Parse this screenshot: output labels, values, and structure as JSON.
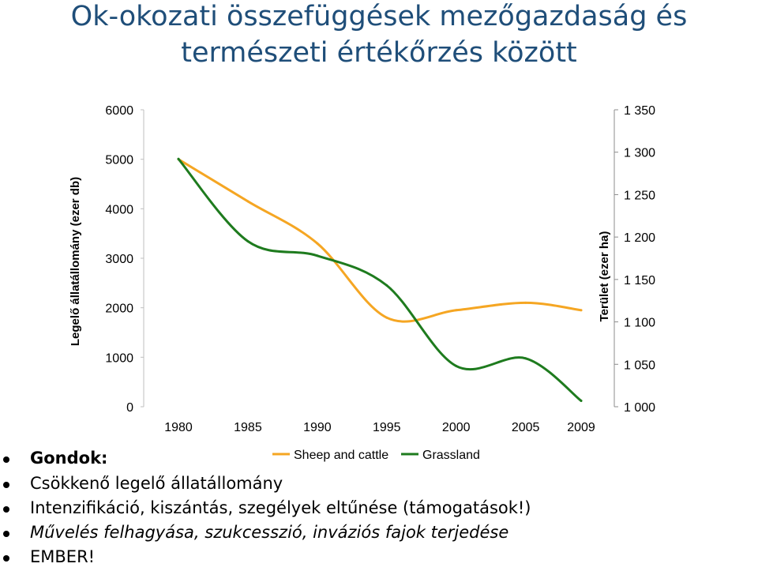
{
  "slide": {
    "title_line1": "Ok-okozati összefüggések mezőgazdaság és",
    "title_line2": "természeti értékőrzés között",
    "bullets": [
      {
        "text": "Gondok:",
        "bold": true
      },
      {
        "text": "Csökkenő legelő állatállomány"
      },
      {
        "text": "Intenzifikáció, kiszántás, szegélyek eltűnése (támogatások!)"
      },
      {
        "text": "Művelés felhagyása, szukcesszió, inváziós fajok terjedése",
        "italic": true
      },
      {
        "text": "EMBER!"
      }
    ]
  },
  "chart_data": {
    "type": "line",
    "title": "",
    "x": [
      1980,
      1985,
      1990,
      1995,
      2000,
      2005,
      2009
    ],
    "x_tick_labels": [
      "1980",
      "1985",
      "1990",
      "1995",
      "2000",
      "2005",
      "2009"
    ],
    "ylabel_left": "Legelő állatállomány (ezer db)",
    "ylabel_right": "Terület (ezer ha)",
    "ylim_left": [
      0,
      6000
    ],
    "ylim_right": [
      1000,
      1350
    ],
    "y_ticks_left": [
      "0",
      "1000",
      "2000",
      "3000",
      "4000",
      "5000",
      "6000"
    ],
    "y_ticks_right": [
      "1 000",
      "1 050",
      "1 100",
      "1 150",
      "1 200",
      "1 250",
      "1 300",
      "1 350"
    ],
    "grid": false,
    "legend_position": "bottom",
    "series": [
      {
        "name": "Sheep and cattle",
        "axis": "left",
        "color": "#F5A623",
        "values": [
          5000,
          4150,
          3300,
          1800,
          1950,
          2100,
          1950
        ]
      },
      {
        "name": "Grassland",
        "axis": "right",
        "color": "#1E7B1E",
        "values": [
          1292,
          1195,
          1178,
          1143,
          1048,
          1057,
          1007
        ]
      }
    ]
  }
}
